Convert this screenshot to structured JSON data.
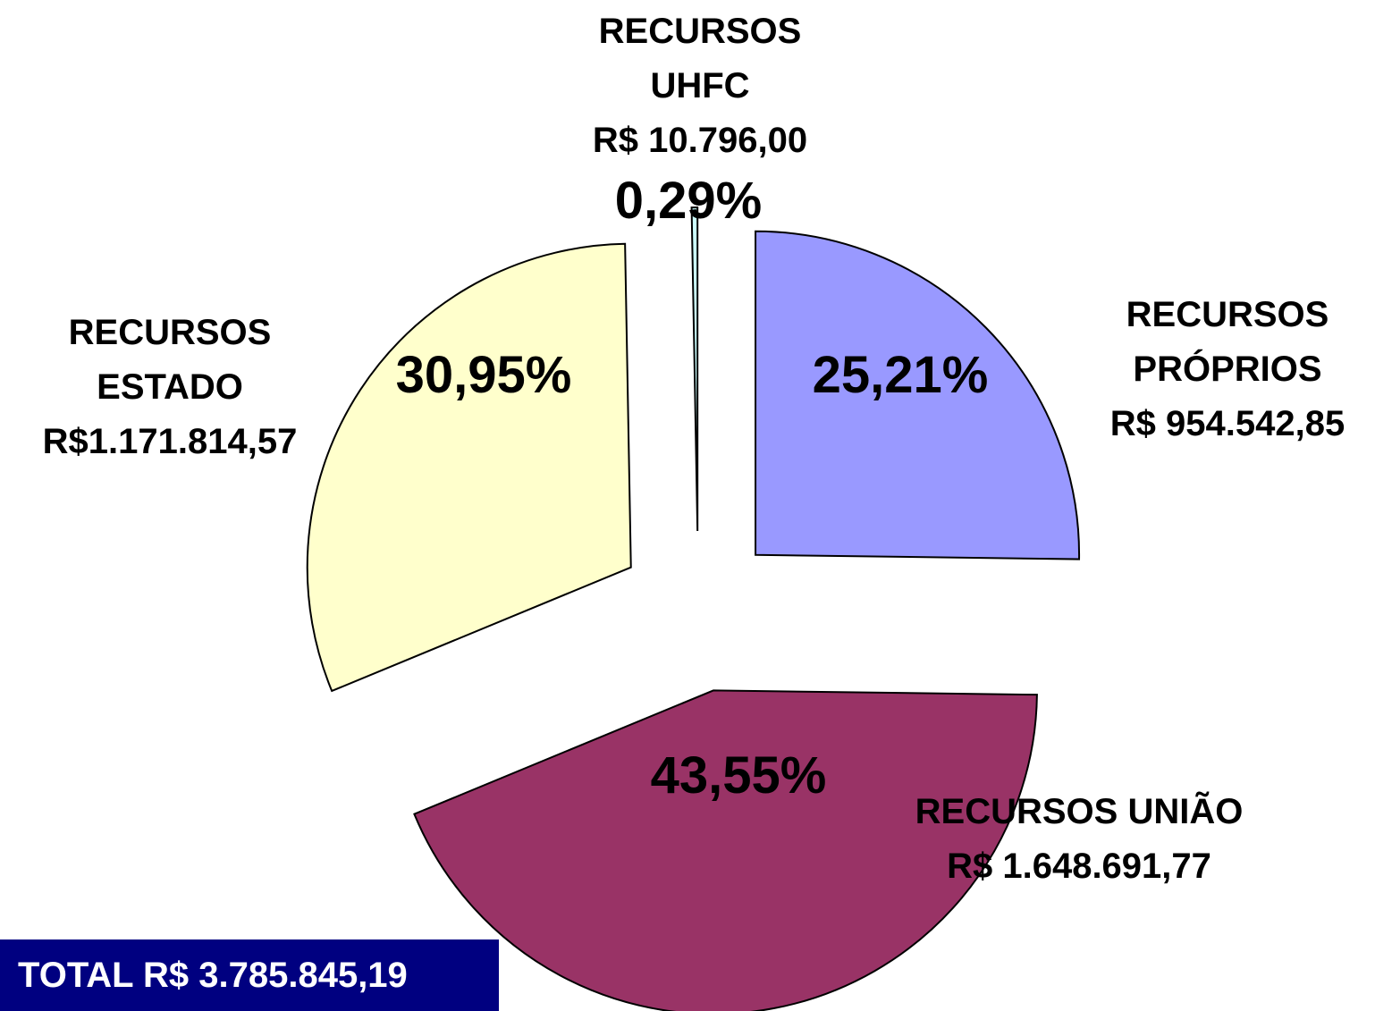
{
  "chart_data": {
    "type": "pie",
    "categories": [
      "RECURSOS PRÓPRIOS",
      "RECURSOS UNIÃO",
      "RECURSOS ESTADO",
      "RECURSOS UHFC"
    ],
    "amounts": [
      "R$ 954.542,85",
      "R$ 1.648.691,77",
      "R$1.171.814,57",
      "R$ 10.796,00"
    ],
    "values": [
      25.21,
      43.55,
      30.95,
      0.29
    ],
    "value_labels": [
      "25,21%",
      "43,55%",
      "30,95%",
      "0,29%"
    ],
    "colors": [
      "#9999ff",
      "#993366",
      "#ffffcc",
      "#ccffff"
    ],
    "total": "TOTAL R$ 3.785.845,19"
  }
}
